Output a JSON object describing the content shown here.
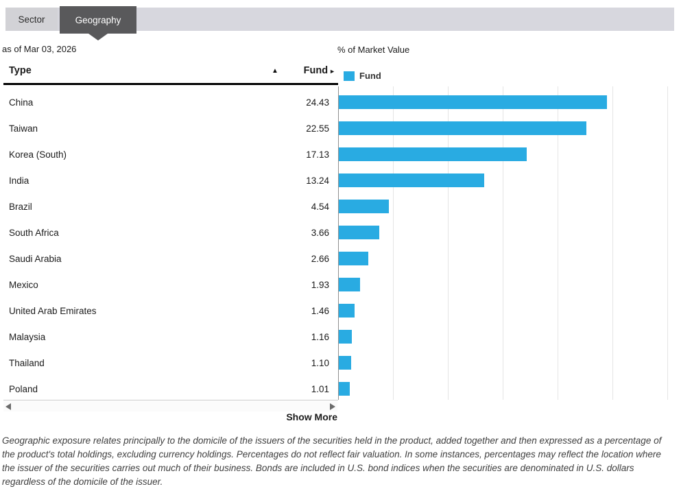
{
  "colors": {
    "bar_blue": "#29abe2",
    "tab_active_bg": "#59595b",
    "tab_strip_bg": "#d7d7de"
  },
  "tabs": {
    "sector_label": "Sector",
    "geography_label": "Geography"
  },
  "as_of": "as of Mar 03, 2026",
  "table": {
    "type_header": "Type",
    "fund_header": "Fund",
    "sort_asc_icon": "▲",
    "expand_icon": "►",
    "rows": [
      {
        "type": "China",
        "fund": "24.43"
      },
      {
        "type": "Taiwan",
        "fund": "22.55"
      },
      {
        "type": "Korea (South)",
        "fund": "17.13"
      },
      {
        "type": "India",
        "fund": "13.24"
      },
      {
        "type": "Brazil",
        "fund": "4.54"
      },
      {
        "type": "South Africa",
        "fund": "3.66"
      },
      {
        "type": "Saudi Arabia",
        "fund": "2.66"
      },
      {
        "type": "Mexico",
        "fund": "1.93"
      },
      {
        "type": "United Arab Emirates",
        "fund": "1.46"
      },
      {
        "type": "Malaysia",
        "fund": "1.16"
      },
      {
        "type": "Thailand",
        "fund": "1.10"
      },
      {
        "type": "Poland",
        "fund": "1.01"
      }
    ],
    "show_more_label": "Show More"
  },
  "chart_data": {
    "type": "bar",
    "orientation": "horizontal",
    "title": "% of Market Value",
    "legend": [
      "Fund"
    ],
    "legend_position": "top-left",
    "categories": [
      "China",
      "Taiwan",
      "Korea (South)",
      "India",
      "Brazil",
      "South Africa",
      "Saudi Arabia",
      "Mexico",
      "United Arab Emirates",
      "Malaysia",
      "Thailand",
      "Poland"
    ],
    "values": [
      24.43,
      22.55,
      17.13,
      13.24,
      4.54,
      3.66,
      2.66,
      1.93,
      1.46,
      1.16,
      1.1,
      1.01
    ],
    "xlim": [
      0,
      30
    ],
    "grid_step": 5,
    "grid": true,
    "bar_color": "#29abe2"
  },
  "footnote": "Geographic exposure relates principally to the domicile of the issuers of the securities held in the product, added together and then expressed as a percentage of the product's total holdings, excluding currency holdings. Percentages do not reflect fair valuation. In some instances, percentages may reflect the location where the issuer of the securities carries out much of their business. Bonds are included in U.S. bond indices when the securities are denominated in U.S. dollars regardless of the domicile of the issuer."
}
